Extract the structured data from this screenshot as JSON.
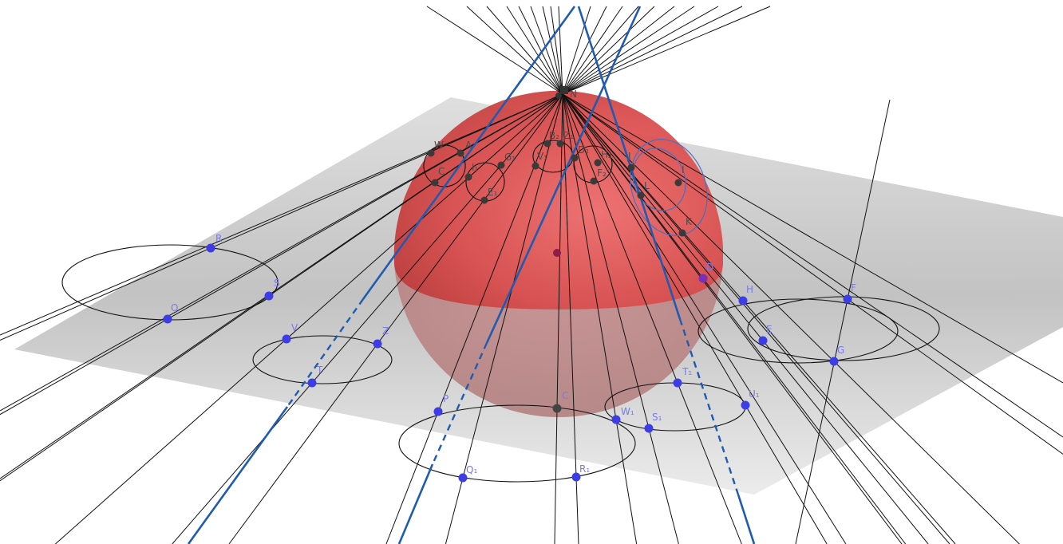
{
  "scene": {
    "colors": {
      "background": "#ffffff",
      "plane": "#bdbdbd",
      "sphere_upper": "#cc3a3a",
      "sphere_lower": "#c48a8a",
      "projection_line": "#000000",
      "blue_line": "#1f5bb0",
      "blue_point": "#3d3de6",
      "dark_point": "#3a3a3a",
      "center_point": "#8a1f4a",
      "blue_label": "#7a7ae8"
    },
    "plane_points": [
      {
        "label": "R"
      },
      {
        "label": "S"
      },
      {
        "label": "Q"
      },
      {
        "label": "V"
      },
      {
        "label": "Z"
      },
      {
        "label": "T"
      },
      {
        "label": "P"
      },
      {
        "label": "C"
      },
      {
        "label": "Q₁"
      },
      {
        "label": "R₁"
      },
      {
        "label": "T₁"
      },
      {
        "label": "U₁"
      },
      {
        "label": "W₁"
      },
      {
        "label": "S₁"
      },
      {
        "label": "H"
      },
      {
        "label": "F"
      },
      {
        "label": "E"
      },
      {
        "label": "G"
      },
      {
        "label": "D"
      }
    ],
    "sphere_points": [
      {
        "label": "W"
      },
      {
        "label": "A"
      },
      {
        "label": "C"
      },
      {
        "label": "I₁"
      },
      {
        "label": "G₁"
      },
      {
        "label": "E₁"
      },
      {
        "label": "B₂"
      },
      {
        "label": "Z₁"
      },
      {
        "label": "V₁"
      },
      {
        "label": "D₂"
      },
      {
        "label": "H₂"
      },
      {
        "label": "F₂"
      },
      {
        "label": "J"
      },
      {
        "label": "I"
      },
      {
        "label": "L"
      },
      {
        "label": "K"
      }
    ],
    "pole_label": "N"
  }
}
